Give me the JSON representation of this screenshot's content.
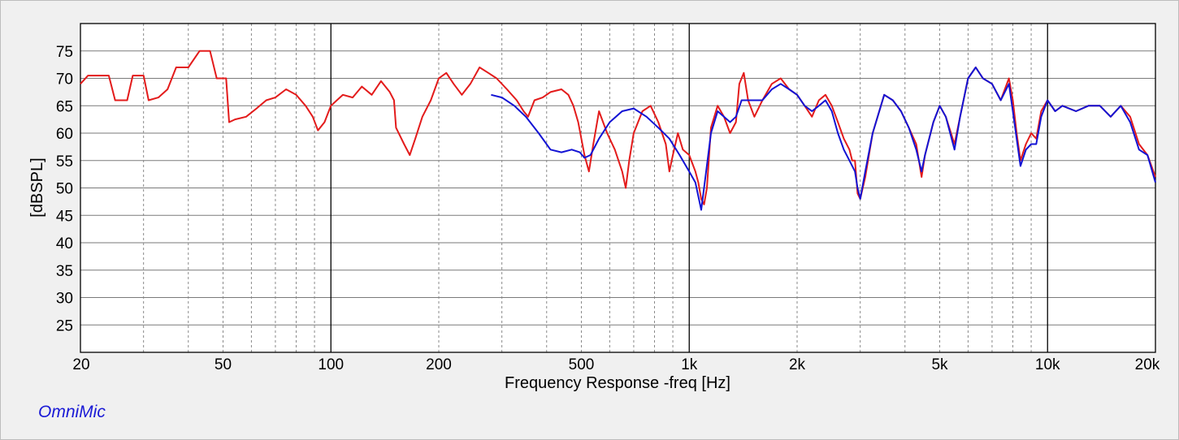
{
  "chart_data": {
    "type": "line",
    "title": "",
    "xlabel": "Frequency Response -freq [Hz]",
    "ylabel": "[dBSPL]",
    "x_scale": "log",
    "xlim": [
      20,
      20000
    ],
    "ylim": [
      20,
      80
    ],
    "grid": true,
    "y_ticks": [
      25,
      30,
      35,
      40,
      45,
      50,
      55,
      60,
      65,
      70,
      75
    ],
    "x_ticks": [
      {
        "value": 20,
        "label": "20"
      },
      {
        "value": 50,
        "label": "50"
      },
      {
        "value": 100,
        "label": "100"
      },
      {
        "value": 200,
        "label": "200"
      },
      {
        "value": 500,
        "label": "500"
      },
      {
        "value": 1000,
        "label": "1k"
      },
      {
        "value": 2000,
        "label": "2k"
      },
      {
        "value": 5000,
        "label": "5k"
      },
      {
        "value": 10000,
        "label": "10k"
      },
      {
        "value": 20000,
        "label": "20k"
      }
    ],
    "series": [
      {
        "color": "#e31b1b",
        "points": [
          [
            20,
            69
          ],
          [
            21,
            70.5
          ],
          [
            24,
            70.5
          ],
          [
            25,
            66
          ],
          [
            27,
            66
          ],
          [
            28,
            70.5
          ],
          [
            30,
            70.5
          ],
          [
            31,
            66
          ],
          [
            33,
            66.5
          ],
          [
            35,
            68
          ],
          [
            37,
            72
          ],
          [
            40,
            72
          ],
          [
            43,
            75
          ],
          [
            46,
            75
          ],
          [
            48,
            70
          ],
          [
            51,
            70
          ],
          [
            52,
            62
          ],
          [
            54,
            62.5
          ],
          [
            58,
            63
          ],
          [
            62,
            64.5
          ],
          [
            66,
            66
          ],
          [
            70,
            66.5
          ],
          [
            75,
            68
          ],
          [
            80,
            67
          ],
          [
            85,
            65
          ],
          [
            89,
            63
          ],
          [
            92,
            60.5
          ],
          [
            96,
            62
          ],
          [
            100,
            65
          ],
          [
            108,
            67
          ],
          [
            115,
            66.5
          ],
          [
            122,
            68.5
          ],
          [
            130,
            67
          ],
          [
            138,
            69.5
          ],
          [
            146,
            67.5
          ],
          [
            150,
            66
          ],
          [
            152,
            61
          ],
          [
            160,
            58
          ],
          [
            166,
            56
          ],
          [
            172,
            59
          ],
          [
            180,
            63
          ],
          [
            190,
            66
          ],
          [
            200,
            70
          ],
          [
            210,
            71
          ],
          [
            220,
            69
          ],
          [
            232,
            67
          ],
          [
            245,
            69
          ],
          [
            260,
            72
          ],
          [
            275,
            71
          ],
          [
            290,
            70
          ],
          [
            310,
            68
          ],
          [
            330,
            66
          ],
          [
            345,
            64
          ],
          [
            355,
            63
          ],
          [
            370,
            66
          ],
          [
            390,
            66.5
          ],
          [
            410,
            67.5
          ],
          [
            440,
            68
          ],
          [
            460,
            67
          ],
          [
            475,
            65
          ],
          [
            490,
            62
          ],
          [
            510,
            56
          ],
          [
            525,
            53
          ],
          [
            540,
            58
          ],
          [
            560,
            64
          ],
          [
            590,
            60
          ],
          [
            620,
            57
          ],
          [
            650,
            53
          ],
          [
            665,
            50
          ],
          [
            680,
            55
          ],
          [
            700,
            60
          ],
          [
            740,
            64
          ],
          [
            780,
            65
          ],
          [
            820,
            62
          ],
          [
            860,
            58
          ],
          [
            880,
            53
          ],
          [
            900,
            56
          ],
          [
            930,
            60
          ],
          [
            960,
            57
          ],
          [
            1000,
            56
          ],
          [
            1040,
            53
          ],
          [
            1060,
            51
          ],
          [
            1080,
            48
          ],
          [
            1100,
            47
          ],
          [
            1120,
            50
          ],
          [
            1150,
            61
          ],
          [
            1200,
            65
          ],
          [
            1250,
            63
          ],
          [
            1300,
            60
          ],
          [
            1350,
            62
          ],
          [
            1380,
            69
          ],
          [
            1420,
            71
          ],
          [
            1460,
            66
          ],
          [
            1520,
            63
          ],
          [
            1600,
            66
          ],
          [
            1700,
            69
          ],
          [
            1800,
            70
          ],
          [
            1900,
            68
          ],
          [
            2000,
            67
          ],
          [
            2100,
            65
          ],
          [
            2200,
            63
          ],
          [
            2300,
            66
          ],
          [
            2400,
            67
          ],
          [
            2500,
            65
          ],
          [
            2600,
            62
          ],
          [
            2700,
            59
          ],
          [
            2800,
            57
          ],
          [
            2850,
            55
          ],
          [
            2900,
            55
          ],
          [
            2950,
            49
          ],
          [
            3000,
            48
          ],
          [
            3100,
            52
          ],
          [
            3250,
            60
          ],
          [
            3500,
            67
          ],
          [
            3700,
            66
          ],
          [
            3900,
            64
          ],
          [
            4100,
            61
          ],
          [
            4300,
            58
          ],
          [
            4450,
            52
          ],
          [
            4550,
            56
          ],
          [
            4800,
            62
          ],
          [
            5000,
            65
          ],
          [
            5200,
            63
          ],
          [
            5500,
            58
          ],
          [
            5700,
            63
          ],
          [
            6000,
            70
          ],
          [
            6300,
            72
          ],
          [
            6600,
            70
          ],
          [
            7000,
            69
          ],
          [
            7400,
            66
          ],
          [
            7800,
            70
          ],
          [
            8000,
            66
          ],
          [
            8200,
            60
          ],
          [
            8400,
            55
          ],
          [
            8700,
            58
          ],
          [
            9000,
            60
          ],
          [
            9300,
            59
          ],
          [
            9600,
            64
          ],
          [
            10000,
            66
          ],
          [
            10500,
            64
          ],
          [
            11000,
            65
          ],
          [
            12000,
            64
          ],
          [
            13000,
            65
          ],
          [
            14000,
            65
          ],
          [
            15000,
            63
          ],
          [
            16000,
            65
          ],
          [
            17000,
            63
          ],
          [
            18000,
            58
          ],
          [
            19000,
            56
          ],
          [
            20000,
            52
          ]
        ]
      },
      {
        "color": "#1313d4",
        "points": [
          [
            280,
            67
          ],
          [
            300,
            66.5
          ],
          [
            325,
            65
          ],
          [
            350,
            63
          ],
          [
            380,
            60
          ],
          [
            410,
            57
          ],
          [
            440,
            56.5
          ],
          [
            470,
            57
          ],
          [
            495,
            56.5
          ],
          [
            510,
            55.5
          ],
          [
            530,
            56
          ],
          [
            560,
            59
          ],
          [
            600,
            62
          ],
          [
            650,
            64
          ],
          [
            700,
            64.5
          ],
          [
            760,
            63
          ],
          [
            820,
            61
          ],
          [
            880,
            59
          ],
          [
            940,
            56
          ],
          [
            1000,
            53
          ],
          [
            1040,
            51
          ],
          [
            1080,
            46
          ],
          [
            1110,
            52
          ],
          [
            1150,
            60
          ],
          [
            1200,
            64
          ],
          [
            1250,
            63
          ],
          [
            1300,
            62
          ],
          [
            1350,
            63
          ],
          [
            1400,
            66
          ],
          [
            1500,
            66
          ],
          [
            1600,
            66
          ],
          [
            1700,
            68
          ],
          [
            1800,
            69
          ],
          [
            1900,
            68
          ],
          [
            2000,
            67
          ],
          [
            2100,
            65
          ],
          [
            2200,
            64
          ],
          [
            2300,
            65
          ],
          [
            2400,
            66
          ],
          [
            2500,
            64
          ],
          [
            2600,
            60
          ],
          [
            2700,
            57
          ],
          [
            2800,
            55
          ],
          [
            2900,
            53
          ],
          [
            2950,
            50
          ],
          [
            3000,
            48
          ],
          [
            3100,
            53
          ],
          [
            3250,
            60
          ],
          [
            3500,
            67
          ],
          [
            3700,
            66
          ],
          [
            3900,
            64
          ],
          [
            4100,
            61
          ],
          [
            4300,
            57
          ],
          [
            4450,
            53
          ],
          [
            4550,
            56
          ],
          [
            4800,
            62
          ],
          [
            5000,
            65
          ],
          [
            5200,
            63
          ],
          [
            5500,
            57
          ],
          [
            5700,
            63
          ],
          [
            6000,
            70
          ],
          [
            6300,
            72
          ],
          [
            6600,
            70
          ],
          [
            7000,
            69
          ],
          [
            7400,
            66
          ],
          [
            7800,
            69
          ],
          [
            8000,
            64
          ],
          [
            8200,
            59
          ],
          [
            8400,
            54
          ],
          [
            8700,
            57
          ],
          [
            9000,
            58
          ],
          [
            9300,
            58
          ],
          [
            9600,
            63
          ],
          [
            10000,
            66
          ],
          [
            10500,
            64
          ],
          [
            11000,
            65
          ],
          [
            12000,
            64
          ],
          [
            13000,
            65
          ],
          [
            14000,
            65
          ],
          [
            15000,
            63
          ],
          [
            16000,
            65
          ],
          [
            17000,
            62
          ],
          [
            18000,
            57
          ],
          [
            19000,
            56
          ],
          [
            20000,
            51
          ]
        ]
      }
    ]
  },
  "brand": "OmniMic"
}
